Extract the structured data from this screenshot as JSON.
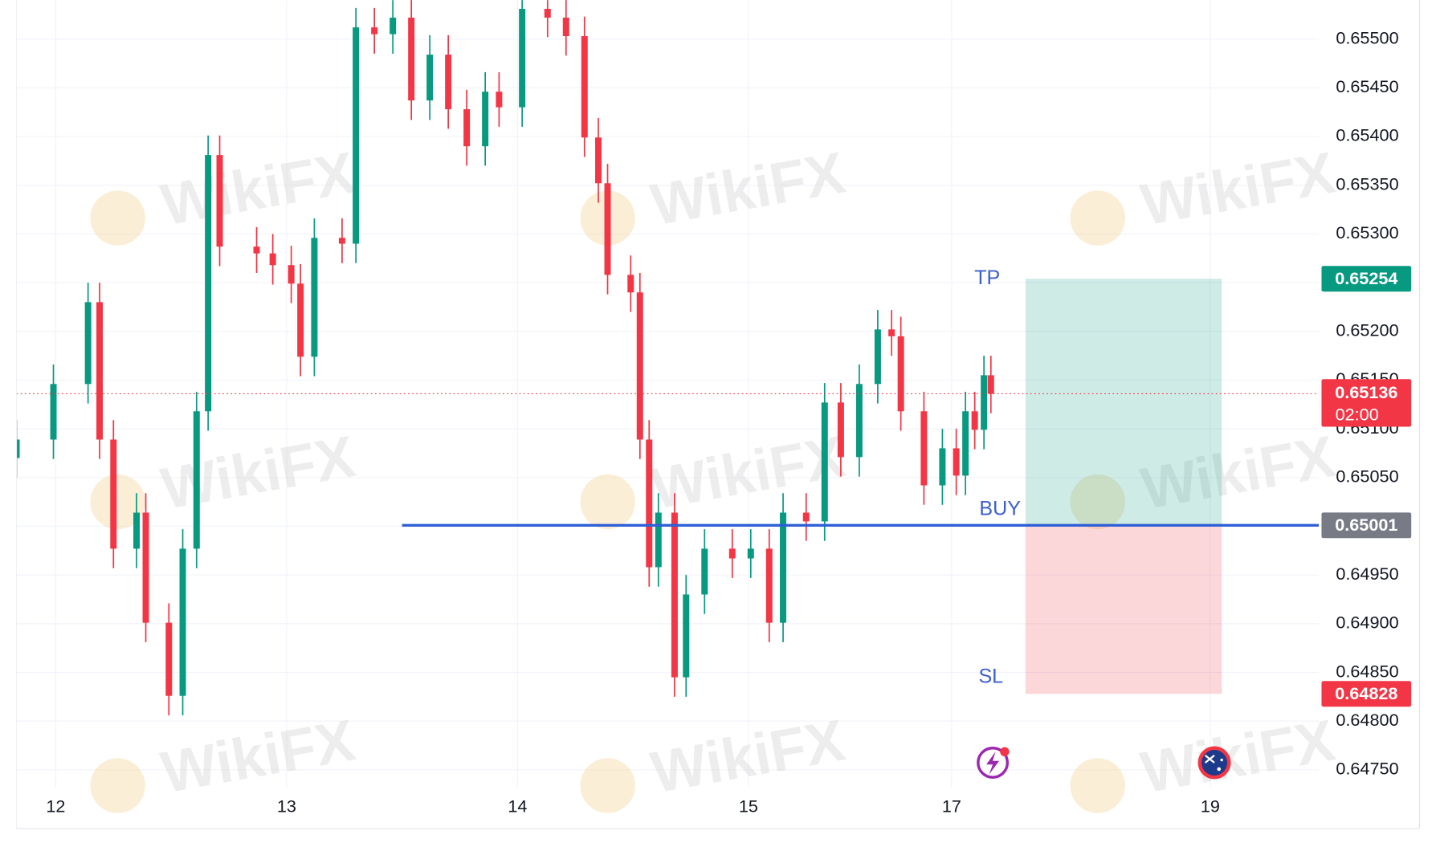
{
  "chart_data": {
    "type": "candlestick",
    "x": [
      -0.17,
      -0.01,
      0.14,
      0.19,
      0.25,
      0.35,
      0.39,
      0.49,
      0.55,
      0.61,
      0.66,
      0.71,
      0.87,
      0.94,
      1.02,
      1.06,
      1.12,
      1.24,
      1.3,
      1.38,
      1.46,
      1.54,
      1.62,
      1.7,
      1.78,
      1.86,
      1.92,
      2.02,
      2.13,
      2.21,
      2.29,
      2.35,
      2.39,
      2.49,
      2.53,
      2.57,
      2.61,
      2.68,
      2.73,
      2.81,
      2.93,
      3.01,
      3.09,
      3.15,
      3.25,
      3.33,
      3.4,
      3.48,
      3.56,
      3.62,
      3.66,
      3.76,
      3.84,
      3.9,
      3.94,
      3.98,
      4.02,
      4.05
    ],
    "open": [
      0.6507,
      0.65089,
      0.65146,
      0.6523,
      0.65089,
      0.64977,
      0.65014,
      0.64901,
      0.64826,
      0.64977,
      0.65118,
      0.65381,
      0.65287,
      0.6528,
      0.65268,
      0.65249,
      0.65174,
      0.65296,
      0.6529,
      0.65512,
      0.65505,
      0.65522,
      0.65437,
      0.65484,
      0.65428,
      0.6539,
      0.65446,
      0.6543,
      0.65531,
      0.65522,
      0.65503,
      0.65399,
      0.65352,
      0.65258,
      0.6524,
      0.65089,
      0.64958,
      0.65014,
      0.64845,
      0.6493,
      0.64977,
      0.64967,
      0.64977,
      0.64901,
      0.65014,
      0.65005,
      0.65127,
      0.65071,
      0.65146,
      0.65202,
      0.65195,
      0.65118,
      0.65042,
      0.6508,
      0.65052,
      0.65118,
      0.65099,
      0.65155
    ],
    "high": [
      0.65109,
      0.65166,
      0.6525,
      0.6525,
      0.65109,
      0.65034,
      0.65034,
      0.64921,
      0.64997,
      0.65138,
      0.65401,
      0.65401,
      0.65307,
      0.653,
      0.65288,
      0.65269,
      0.65316,
      0.65316,
      0.65532,
      0.65532,
      0.65542,
      0.65542,
      0.65504,
      0.65504,
      0.65448,
      0.65466,
      0.65466,
      0.65551,
      0.65551,
      0.65542,
      0.65523,
      0.65419,
      0.65372,
      0.65278,
      0.6526,
      0.65109,
      0.65034,
      0.65034,
      0.6495,
      0.64997,
      0.64997,
      0.64997,
      0.64997,
      0.65034,
      0.65034,
      0.65147,
      0.65147,
      0.65166,
      0.65222,
      0.65222,
      0.65215,
      0.65138,
      0.651,
      0.651,
      0.65138,
      0.65138,
      0.65175,
      0.65175
    ],
    "low": [
      0.6505,
      0.65069,
      0.65126,
      0.65069,
      0.64957,
      0.64957,
      0.64881,
      0.64806,
      0.64806,
      0.64957,
      0.65098,
      0.65267,
      0.6526,
      0.65248,
      0.65229,
      0.65154,
      0.65154,
      0.6527,
      0.6527,
      0.65485,
      0.65485,
      0.65417,
      0.65417,
      0.65408,
      0.6537,
      0.6537,
      0.6541,
      0.6541,
      0.65502,
      0.65483,
      0.65379,
      0.65332,
      0.65238,
      0.6522,
      0.65069,
      0.64938,
      0.64938,
      0.64825,
      0.64825,
      0.6491,
      0.64947,
      0.64947,
      0.64881,
      0.64881,
      0.64985,
      0.64985,
      0.65051,
      0.65051,
      0.65126,
      0.65175,
      0.65098,
      0.65022,
      0.65022,
      0.65032,
      0.65032,
      0.65079,
      0.65079,
      0.65116
    ],
    "close": [
      0.65089,
      0.65146,
      0.6523,
      0.65089,
      0.64977,
      0.65014,
      0.64901,
      0.64826,
      0.64977,
      0.65118,
      0.65381,
      0.65287,
      0.6528,
      0.65268,
      0.65249,
      0.65174,
      0.65296,
      0.6529,
      0.65512,
      0.65505,
      0.65522,
      0.65437,
      0.65484,
      0.65428,
      0.6539,
      0.65446,
      0.6543,
      0.65531,
      0.65522,
      0.65503,
      0.65399,
      0.65352,
      0.65258,
      0.6524,
      0.65089,
      0.64958,
      0.65014,
      0.64845,
      0.6493,
      0.64977,
      0.64967,
      0.64977,
      0.64901,
      0.65014,
      0.65005,
      0.65127,
      0.65071,
      0.65146,
      0.65202,
      0.65195,
      0.65118,
      0.65042,
      0.6508,
      0.65052,
      0.65118,
      0.65099,
      0.65155,
      0.65136
    ],
    "up_color": "#089981",
    "down_color": "#f23645",
    "xlim": [
      -0.17,
      5.47
    ],
    "xticks": [
      {
        "value": 0,
        "label": "12"
      },
      {
        "value": 1,
        "label": "13"
      },
      {
        "value": 2,
        "label": "14"
      },
      {
        "value": 3,
        "label": "15"
      },
      {
        "value": 3.88,
        "label": "17"
      },
      {
        "value": 5.0,
        "label": "19"
      }
    ],
    "ylim": [
      0.64732,
      0.6554
    ],
    "yticks": [
      {
        "value": 0.6475,
        "label": "0.64750"
      },
      {
        "value": 0.648,
        "label": "0.64800"
      },
      {
        "value": 0.6485,
        "label": "0.64850"
      },
      {
        "value": 0.649,
        "label": "0.64900"
      },
      {
        "value": 0.6495,
        "label": "0.64950"
      },
      {
        "value": 0.65,
        "label": "0.65000"
      },
      {
        "value": 0.6505,
        "label": "0.65050"
      },
      {
        "value": 0.651,
        "label": "0.65100"
      },
      {
        "value": 0.6515,
        "label": "0.65150"
      },
      {
        "value": 0.652,
        "label": "0.65200"
      },
      {
        "value": 0.6525,
        "label": "0.65250"
      },
      {
        "value": 0.653,
        "label": "0.65300"
      },
      {
        "value": 0.6535,
        "label": "0.65350"
      },
      {
        "value": 0.654,
        "label": "0.65400"
      },
      {
        "value": 0.6545,
        "label": "0.65450"
      },
      {
        "value": 0.655,
        "label": "0.65500"
      }
    ],
    "grid": true,
    "current_price": 0.65136,
    "countdown": "02:00",
    "position": {
      "entry_label": "BUY",
      "entry": 0.65001,
      "tp_label": "TP",
      "take_profit": 0.65254,
      "sl_label": "SL",
      "stop_loss": 0.64828,
      "line_start": 1.5,
      "box_start": 4.2,
      "box_end": 5.05
    },
    "watermark": "WikiFX"
  }
}
